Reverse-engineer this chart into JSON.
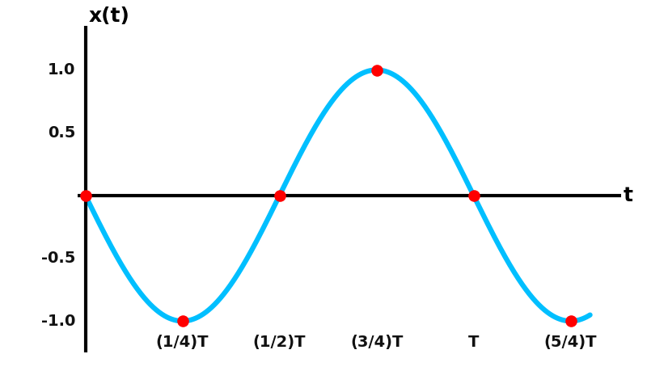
{
  "title_ylabel": "x(t)",
  "title_xlabel": "t",
  "ylim": [
    -1.25,
    1.35
  ],
  "xlim": [
    -0.02,
    1.38
  ],
  "curve_color": "#00BFFF",
  "curve_linewidth": 4.5,
  "point_color": "#FF0000",
  "point_size": 110,
  "point_edgewidth": 0,
  "grid_color": "#BBBBBB",
  "grid_linewidth": 0.9,
  "background_color": "#FFFFFF",
  "axis_color": "#000000",
  "axis_linewidth": 3.0,
  "key_points_x": [
    0,
    0.25,
    0.5,
    0.75,
    1.0,
    1.25
  ],
  "key_points_y": [
    0,
    -1,
    0,
    1,
    0,
    -1
  ],
  "xtick_positions": [
    0.25,
    0.5,
    0.75,
    1.0,
    1.25
  ],
  "xtick_labels": [
    "(1/4)T",
    "(1/2)T",
    "(3/4)T",
    "T",
    "(5/4)T"
  ],
  "ytick_positions": [
    -1.0,
    -0.5,
    0.5,
    1.0
  ],
  "ytick_labels": [
    "-1.0",
    "-0.5",
    "0.5",
    "1.0"
  ],
  "font_size_ticks": 14,
  "font_size_axis_label": 18,
  "font_weight": "bold"
}
